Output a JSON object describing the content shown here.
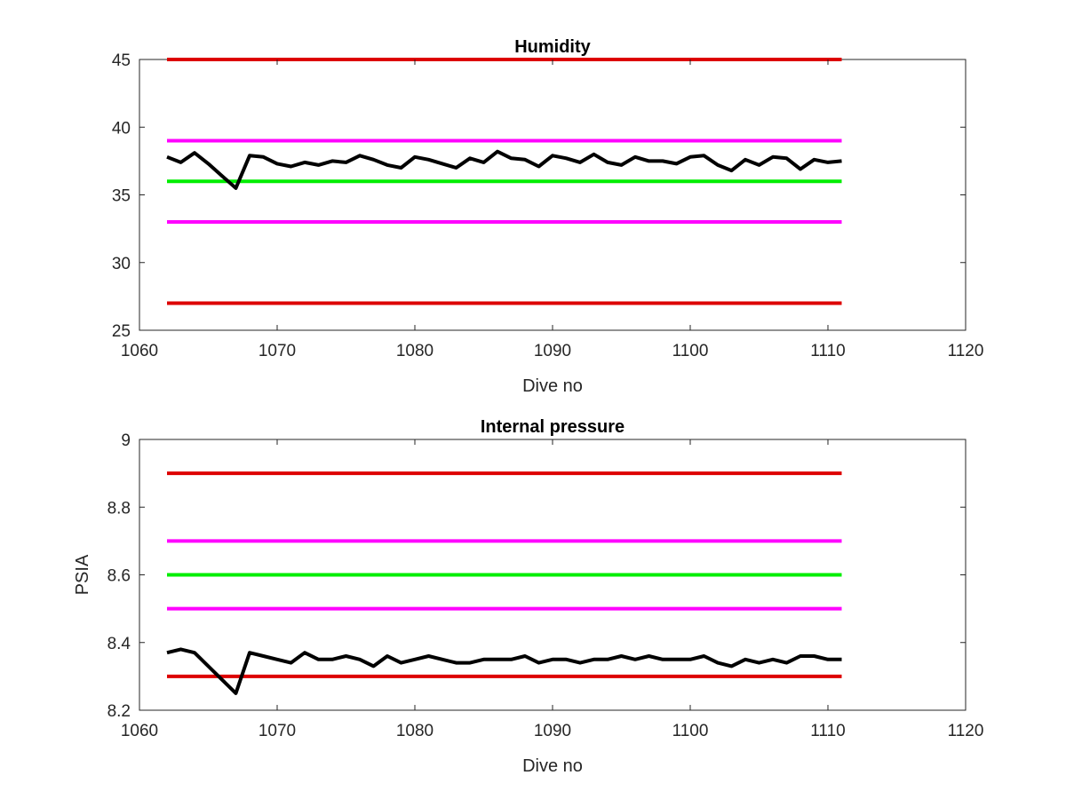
{
  "chart_data": [
    {
      "type": "line",
      "title": "Humidity",
      "xlabel": "Dive no",
      "ylabel": "",
      "xlim": [
        1060,
        1120
      ],
      "ylim": [
        25,
        45
      ],
      "xticks": [
        1060,
        1070,
        1080,
        1090,
        1100,
        1110,
        1120
      ],
      "yticks": [
        25,
        30,
        35,
        40,
        45
      ],
      "grid": false,
      "reference_lines": [
        {
          "y": 45,
          "x_range": [
            1062,
            1111
          ],
          "color": "#dd0000"
        },
        {
          "y": 39,
          "x_range": [
            1062,
            1111
          ],
          "color": "#ff00ff"
        },
        {
          "y": 36,
          "x_range": [
            1062,
            1111
          ],
          "color": "#00ee00"
        },
        {
          "y": 33,
          "x_range": [
            1062,
            1111
          ],
          "color": "#ff00ff"
        },
        {
          "y": 27,
          "x_range": [
            1062,
            1111
          ],
          "color": "#dd0000"
        }
      ],
      "series": [
        {
          "color": "#000000",
          "x": [
            1062,
            1063,
            1064,
            1065,
            1066,
            1067,
            1068,
            1069,
            1070,
            1071,
            1072,
            1073,
            1074,
            1075,
            1076,
            1077,
            1078,
            1079,
            1080,
            1081,
            1082,
            1083,
            1084,
            1085,
            1086,
            1087,
            1088,
            1089,
            1090,
            1091,
            1092,
            1093,
            1094,
            1095,
            1096,
            1097,
            1098,
            1099,
            1100,
            1101,
            1102,
            1103,
            1104,
            1105,
            1106,
            1107,
            1108,
            1109,
            1110,
            1111
          ],
          "values": [
            37.8,
            37.4,
            38.1,
            37.3,
            36.4,
            35.5,
            37.9,
            37.8,
            37.3,
            37.1,
            37.4,
            37.2,
            37.5,
            37.4,
            37.9,
            37.6,
            37.2,
            37.0,
            37.8,
            37.6,
            37.3,
            37.0,
            37.7,
            37.4,
            38.2,
            37.7,
            37.6,
            37.1,
            37.9,
            37.7,
            37.4,
            38.0,
            37.4,
            37.2,
            37.8,
            37.5,
            37.5,
            37.3,
            37.8,
            37.9,
            37.2,
            36.8,
            37.6,
            37.2,
            37.8,
            37.7,
            36.9,
            37.6,
            37.4,
            37.5
          ]
        }
      ]
    },
    {
      "type": "line",
      "title": "Internal pressure",
      "xlabel": "Dive no",
      "ylabel": "PSIA",
      "xlim": [
        1060,
        1120
      ],
      "ylim": [
        8.2,
        9
      ],
      "xticks": [
        1060,
        1070,
        1080,
        1090,
        1100,
        1110,
        1120
      ],
      "yticks": [
        8.2,
        8.4,
        8.6,
        8.8,
        9
      ],
      "ytick_labels": [
        "8.2",
        "8.4",
        "8.6",
        "8.8",
        "9"
      ],
      "grid": false,
      "reference_lines": [
        {
          "y": 8.9,
          "x_range": [
            1062,
            1111
          ],
          "color": "#dd0000"
        },
        {
          "y": 8.7,
          "x_range": [
            1062,
            1111
          ],
          "color": "#ff00ff"
        },
        {
          "y": 8.6,
          "x_range": [
            1062,
            1111
          ],
          "color": "#00ee00"
        },
        {
          "y": 8.5,
          "x_range": [
            1062,
            1111
          ],
          "color": "#ff00ff"
        },
        {
          "y": 8.3,
          "x_range": [
            1062,
            1111
          ],
          "color": "#dd0000"
        }
      ],
      "series": [
        {
          "color": "#000000",
          "x": [
            1062,
            1063,
            1064,
            1065,
            1066,
            1067,
            1068,
            1069,
            1070,
            1071,
            1072,
            1073,
            1074,
            1075,
            1076,
            1077,
            1078,
            1079,
            1080,
            1081,
            1082,
            1083,
            1084,
            1085,
            1086,
            1087,
            1088,
            1089,
            1090,
            1091,
            1092,
            1093,
            1094,
            1095,
            1096,
            1097,
            1098,
            1099,
            1100,
            1101,
            1102,
            1103,
            1104,
            1105,
            1106,
            1107,
            1108,
            1109,
            1110,
            1111
          ],
          "values": [
            8.37,
            8.38,
            8.37,
            8.33,
            8.29,
            8.25,
            8.37,
            8.36,
            8.35,
            8.34,
            8.37,
            8.35,
            8.35,
            8.36,
            8.35,
            8.33,
            8.36,
            8.34,
            8.35,
            8.36,
            8.35,
            8.34,
            8.34,
            8.35,
            8.35,
            8.35,
            8.36,
            8.34,
            8.35,
            8.35,
            8.34,
            8.35,
            8.35,
            8.36,
            8.35,
            8.36,
            8.35,
            8.35,
            8.35,
            8.36,
            8.34,
            8.33,
            8.35,
            8.34,
            8.35,
            8.34,
            8.36,
            8.36,
            8.35,
            8.35
          ]
        }
      ]
    }
  ]
}
